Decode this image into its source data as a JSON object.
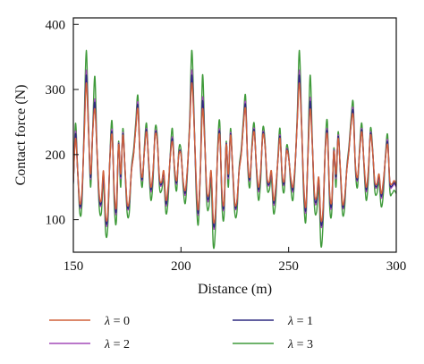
{
  "chart_data": {
    "type": "line",
    "title": "",
    "xlabel": "Distance (m)",
    "ylabel": "Contact force (N)",
    "xlim": [
      150,
      300
    ],
    "ylim": [
      50,
      410
    ],
    "xticks": [
      150,
      200,
      250,
      300
    ],
    "yticks": [
      100,
      200,
      300,
      400
    ],
    "grid": false,
    "legend_position": "bottom",
    "series": [
      {
        "name": "λ = 0",
        "color": "#d0603a",
        "x": [
          150,
          151,
          152,
          153,
          154,
          155,
          156,
          157,
          158,
          159,
          160,
          161,
          162,
          163,
          164,
          165,
          166,
          167,
          168,
          169,
          170,
          171,
          172,
          173,
          174,
          175,
          176,
          177,
          178,
          179,
          180,
          181,
          182,
          183,
          184,
          185,
          186,
          187,
          188,
          189,
          190,
          191,
          192,
          193,
          194,
          195,
          196,
          197,
          198,
          199,
          200,
          201,
          202,
          203,
          204,
          205,
          206,
          207,
          208,
          209,
          210,
          211,
          212,
          213,
          214,
          215,
          216,
          217,
          218,
          219,
          220,
          221,
          222,
          223,
          224,
          225,
          226,
          227,
          228,
          229,
          230,
          231,
          232,
          233,
          234,
          235,
          236,
          237,
          238,
          239,
          240,
          241,
          242,
          243,
          244,
          245,
          246,
          247,
          248,
          249,
          250,
          251,
          252,
          253,
          254,
          255,
          256,
          257,
          258,
          259,
          260,
          261,
          262,
          263,
          264,
          265,
          266,
          267,
          268,
          269,
          270,
          271,
          272,
          273,
          274,
          275,
          276,
          277,
          278,
          279,
          280,
          281,
          282,
          283,
          284,
          285,
          286,
          287,
          288,
          289,
          290,
          291,
          292,
          293,
          294,
          295,
          296,
          297,
          298,
          299,
          300
        ],
        "y": [
          160,
          225,
          175,
          125,
          145,
          225,
          310,
          240,
          170,
          235,
          270,
          205,
          140,
          130,
          175,
          105,
          110,
          195,
          230,
          145,
          120,
          215,
          170,
          230,
          180,
          125,
          130,
          175,
          200,
          240,
          270,
          195,
          165,
          205,
          235,
          190,
          150,
          175,
          230,
          220,
          165,
          158,
          175,
          130,
          150,
          195,
          220,
          180,
          160,
          200,
          200,
          160,
          145,
          180,
          240,
          310,
          255,
          165,
          115,
          175,
          270,
          220,
          145,
          140,
          175,
          100,
          112,
          200,
          230,
          145,
          125,
          215,
          170,
          230,
          180,
          125,
          130,
          175,
          200,
          245,
          270,
          190,
          165,
          210,
          235,
          185,
          150,
          175,
          230,
          215,
          165,
          158,
          175,
          130,
          150,
          190,
          225,
          170,
          160,
          205,
          195,
          165,
          150,
          185,
          250,
          310,
          245,
          155,
          120,
          200,
          270,
          215,
          140,
          135,
          165,
          100,
          118,
          205,
          230,
          145,
          128,
          205,
          170,
          225,
          180,
          125,
          135,
          175,
          205,
          245,
          260,
          185,
          165,
          205,
          235,
          188,
          150,
          175,
          230,
          205,
          160,
          155,
          170,
          140,
          160,
          195,
          215,
          160,
          155,
          160,
          155
        ]
      },
      {
        "name": "λ = 1",
        "color": "#2e2a80",
        "x": [
          150,
          151,
          152,
          153,
          154,
          155,
          156,
          157,
          158,
          159,
          160,
          161,
          162,
          163,
          164,
          165,
          166,
          167,
          168,
          169,
          170,
          171,
          172,
          173,
          174,
          175,
          176,
          177,
          178,
          179,
          180,
          181,
          182,
          183,
          184,
          185,
          186,
          187,
          188,
          189,
          190,
          191,
          192,
          193,
          194,
          195,
          196,
          197,
          198,
          199,
          200,
          201,
          202,
          203,
          204,
          205,
          206,
          207,
          208,
          209,
          210,
          211,
          212,
          213,
          214,
          215,
          216,
          217,
          218,
          219,
          220,
          221,
          222,
          223,
          224,
          225,
          226,
          227,
          228,
          229,
          230,
          231,
          232,
          233,
          234,
          235,
          236,
          237,
          238,
          239,
          240,
          241,
          242,
          243,
          244,
          245,
          246,
          247,
          248,
          249,
          250,
          251,
          252,
          253,
          254,
          255,
          256,
          257,
          258,
          259,
          260,
          261,
          262,
          263,
          264,
          265,
          266,
          267,
          268,
          269,
          270,
          271,
          272,
          273,
          274,
          275,
          276,
          277,
          278,
          279,
          280,
          281,
          282,
          283,
          284,
          285,
          286,
          287,
          288,
          289,
          290,
          291,
          292,
          293,
          294,
          295,
          296,
          297,
          298,
          299,
          300
        ],
        "y": [
          158,
          232,
          175,
          122,
          140,
          230,
          322,
          243,
          165,
          236,
          280,
          205,
          135,
          126,
          170,
          100,
          106,
          196,
          234,
          141,
          115,
          216,
          166,
          232,
          178,
          122,
          126,
          176,
          202,
          242,
          276,
          193,
          162,
          206,
          238,
          188,
          146,
          172,
          232,
          221,
          162,
          155,
          172,
          125,
          146,
          196,
          224,
          178,
          157,
          201,
          201,
          158,
          141,
          178,
          242,
          322,
          258,
          160,
          110,
          175,
          282,
          222,
          141,
          135,
          172,
          94,
          107,
          201,
          234,
          141,
          121,
          216,
          166,
          232,
          178,
          122,
          127,
          176,
          202,
          247,
          276,
          188,
          162,
          211,
          238,
          183,
          146,
          172,
          232,
          216,
          162,
          155,
          172,
          126,
          146,
          191,
          228,
          168,
          157,
          206,
          196,
          162,
          146,
          183,
          252,
          322,
          247,
          150,
          115,
          201,
          282,
          216,
          136,
          130,
          162,
          94,
          113,
          206,
          234,
          141,
          123,
          206,
          166,
          228,
          178,
          122,
          131,
          176,
          207,
          247,
          266,
          183,
          162,
          206,
          238,
          186,
          146,
          172,
          232,
          206,
          157,
          152,
          167,
          136,
          156,
          196,
          219,
          157,
          152,
          157,
          152
        ]
      },
      {
        "name": "λ = 2",
        "color": "#a34ab8",
        "x": [
          150,
          151,
          152,
          153,
          154,
          155,
          156,
          157,
          158,
          159,
          160,
          161,
          162,
          163,
          164,
          165,
          166,
          167,
          168,
          169,
          170,
          171,
          172,
          173,
          174,
          175,
          176,
          177,
          178,
          179,
          180,
          181,
          182,
          183,
          184,
          185,
          186,
          187,
          188,
          189,
          190,
          191,
          192,
          193,
          194,
          195,
          196,
          197,
          198,
          199,
          200,
          201,
          202,
          203,
          204,
          205,
          206,
          207,
          208,
          209,
          210,
          211,
          212,
          213,
          214,
          215,
          216,
          217,
          218,
          219,
          220,
          221,
          222,
          223,
          224,
          225,
          226,
          227,
          228,
          229,
          230,
          231,
          232,
          233,
          234,
          235,
          236,
          237,
          238,
          239,
          240,
          241,
          242,
          243,
          244,
          245,
          246,
          247,
          248,
          249,
          250,
          251,
          252,
          253,
          254,
          255,
          256,
          257,
          258,
          259,
          260,
          261,
          262,
          263,
          264,
          265,
          266,
          267,
          268,
          269,
          270,
          271,
          272,
          273,
          274,
          275,
          276,
          277,
          278,
          279,
          280,
          281,
          282,
          283,
          284,
          285,
          286,
          287,
          288,
          289,
          290,
          291,
          292,
          293,
          294,
          295,
          296,
          297,
          298,
          299,
          300
        ],
        "y": [
          157,
          236,
          175,
          120,
          137,
          233,
          330,
          245,
          162,
          237,
          285,
          205,
          132,
          124,
          167,
          97,
          103,
          197,
          237,
          138,
          112,
          217,
          163,
          234,
          177,
          120,
          124,
          177,
          203,
          243,
          280,
          192,
          160,
          207,
          240,
          187,
          143,
          170,
          234,
          222,
          160,
          153,
          170,
          122,
          143,
          197,
          227,
          177,
          155,
          202,
          202,
          157,
          138,
          177,
          243,
          330,
          260,
          157,
          107,
          175,
          288,
          224,
          138,
          132,
          170,
          91,
          104,
          202,
          237,
          138,
          119,
          217,
          163,
          234,
          177,
          120,
          125,
          177,
          203,
          248,
          280,
          187,
          160,
          212,
          240,
          182,
          143,
          170,
          234,
          217,
          160,
          153,
          170,
          123,
          143,
          192,
          230,
          167,
          155,
          207,
          197,
          160,
          143,
          182,
          253,
          330,
          248,
          147,
          112,
          202,
          288,
          217,
          133,
          127,
          160,
          91,
          110,
          207,
          237,
          138,
          121,
          207,
          163,
          230,
          177,
          120,
          129,
          177,
          208,
          248,
          270,
          182,
          160,
          207,
          240,
          185,
          143,
          170,
          234,
          207,
          155,
          150,
          165,
          133,
          153,
          197,
          222,
          155,
          150,
          155,
          150
        ]
      },
      {
        "name": "λ = 3",
        "color": "#3f9a3a",
        "x": [
          150,
          151,
          152,
          153,
          154,
          155,
          156,
          157,
          158,
          159,
          160,
          161,
          162,
          163,
          164,
          165,
          166,
          167,
          168,
          169,
          170,
          171,
          172,
          173,
          174,
          175,
          176,
          177,
          178,
          179,
          180,
          181,
          182,
          183,
          184,
          185,
          186,
          187,
          188,
          189,
          190,
          191,
          192,
          193,
          194,
          195,
          196,
          197,
          198,
          199,
          200,
          201,
          202,
          203,
          204,
          205,
          206,
          207,
          208,
          209,
          210,
          211,
          212,
          213,
          214,
          215,
          216,
          217,
          218,
          219,
          220,
          221,
          222,
          223,
          224,
          225,
          226,
          227,
          228,
          229,
          230,
          231,
          232,
          233,
          234,
          235,
          236,
          237,
          238,
          239,
          240,
          241,
          242,
          243,
          244,
          245,
          246,
          247,
          248,
          249,
          250,
          251,
          252,
          253,
          254,
          255,
          256,
          257,
          258,
          259,
          260,
          261,
          262,
          263,
          264,
          265,
          266,
          267,
          268,
          269,
          270,
          271,
          272,
          273,
          274,
          275,
          276,
          277,
          278,
          279,
          280,
          281,
          282,
          283,
          284,
          285,
          286,
          287,
          288,
          289,
          290,
          291,
          292,
          293,
          294,
          295,
          296,
          297,
          298,
          299,
          300
        ],
        "y": [
          155,
          248,
          176,
          110,
          125,
          245,
          360,
          250,
          150,
          240,
          320,
          205,
          120,
          110,
          160,
          80,
          90,
          200,
          250,
          125,
          98,
          220,
          150,
          240,
          175,
          110,
          112,
          180,
          208,
          250,
          290,
          190,
          150,
          212,
          248,
          183,
          130,
          160,
          240,
          228,
          150,
          145,
          162,
          110,
          130,
          200,
          240,
          172,
          145,
          208,
          208,
          150,
          125,
          172,
          250,
          360,
          270,
          145,
          92,
          175,
          322,
          230,
          125,
          120,
          160,
          60,
          88,
          208,
          250,
          125,
          105,
          220,
          150,
          240,
          175,
          110,
          112,
          180,
          208,
          255,
          290,
          182,
          150,
          218,
          248,
          178,
          130,
          160,
          240,
          222,
          150,
          145,
          162,
          110,
          130,
          195,
          240,
          158,
          145,
          212,
          200,
          150,
          130,
          178,
          260,
          360,
          252,
          135,
          98,
          208,
          322,
          222,
          120,
          112,
          150,
          60,
          96,
          212,
          250,
          125,
          110,
          210,
          150,
          235,
          175,
          110,
          118,
          180,
          212,
          255,
          280,
          178,
          150,
          212,
          248,
          182,
          130,
          160,
          240,
          210,
          145,
          140,
          158,
          120,
          140,
          200,
          230,
          145,
          140,
          145,
          140
        ]
      }
    ]
  }
}
